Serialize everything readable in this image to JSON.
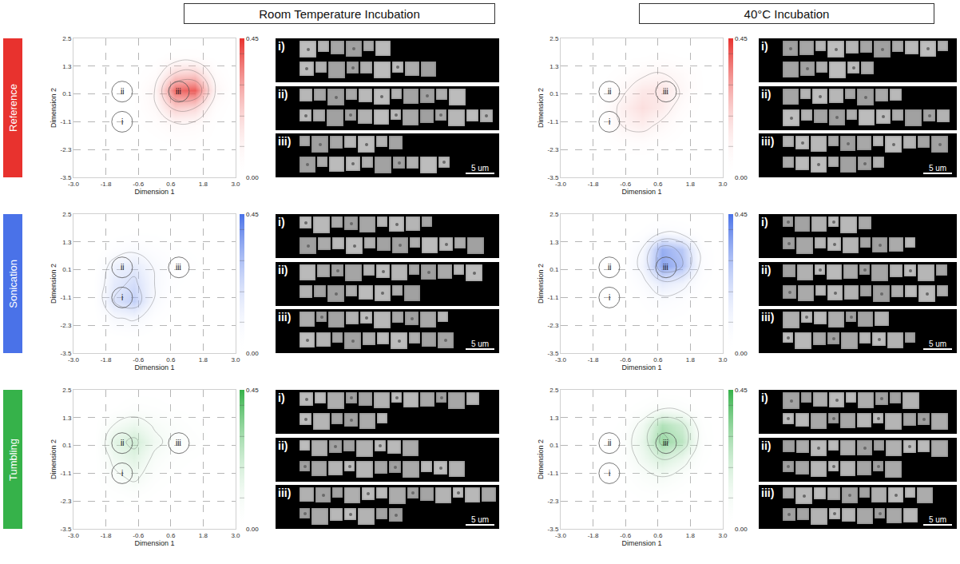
{
  "columns": [
    "Room Temperature Incubation",
    "40°C Incubation"
  ],
  "rows": [
    {
      "label": "Reference",
      "color": "#e8322e"
    },
    {
      "label": "Sonication",
      "color": "#4a72e8"
    },
    {
      "label": "Tumbling",
      "color": "#36b24a"
    }
  ],
  "chart_data": [
    {
      "type": "contour",
      "x_label": "Dimension 1",
      "y_label": "Dimension 2",
      "xlim": [
        -3,
        3
      ],
      "ylim": [
        -3.5,
        2.5
      ],
      "xticks": [
        {
          "value": -3,
          "label": "-3.0"
        },
        -1.8,
        -0.6,
        0.6,
        1.8,
        {
          "value": 3,
          "label": "3.0"
        }
      ],
      "yticks": [
        -3.5,
        -2.3,
        -1.1,
        0.1,
        1.3,
        2.5
      ],
      "grid": true,
      "color": "#e8322e",
      "x": [
        -3,
        -2.25,
        -1.5,
        -0.75,
        0,
        0.75,
        1.5,
        2.25,
        3
      ],
      "y": [
        -3.5,
        -2.75,
        -2,
        -1.25,
        -0.5,
        0.25,
        1,
        1.75,
        2.5
      ],
      "z": [
        [
          0,
          0,
          0,
          0,
          0,
          0,
          0,
          0,
          0
        ],
        [
          0,
          0,
          0,
          0,
          0,
          0.01,
          0.01,
          0,
          0
        ],
        [
          0,
          0,
          0,
          0,
          0.01,
          0.03,
          0.03,
          0.01,
          0
        ],
        [
          0,
          0,
          0,
          0.01,
          0.04,
          0.08,
          0.07,
          0.02,
          0
        ],
        [
          0,
          0,
          0,
          0.02,
          0.08,
          0.22,
          0.2,
          0.05,
          0
        ],
        [
          0,
          0,
          0,
          0.02,
          0.1,
          0.38,
          0.4,
          0.1,
          0.01
        ],
        [
          0,
          0,
          0,
          0.01,
          0.05,
          0.2,
          0.22,
          0.06,
          0
        ],
        [
          0,
          0,
          0,
          0,
          0.01,
          0.04,
          0.04,
          0.01,
          0
        ],
        [
          0,
          0,
          0,
          0,
          0,
          0,
          0,
          0,
          0
        ]
      ],
      "zlim": [
        0,
        0.45
      ],
      "zticks": [
        {
          "value": 0,
          "label": "0.00"
        },
        {
          "value": 0.45,
          "label": "0.45"
        }
      ],
      "regions": [
        {
          "label": "i",
          "x": -1.2,
          "y": -1.1
        },
        {
          "label": "ii",
          "x": -1.2,
          "y": 0.2
        },
        {
          "label": "iii",
          "x": 0.9,
          "y": 0.2
        }
      ],
      "strips": [
        "i)",
        "ii)",
        "iii)"
      ],
      "scale_bar": "5 um"
    },
    {
      "type": "contour",
      "x_label": "Dimension 1",
      "y_label": "Dimension 2",
      "xlim": [
        -3,
        3
      ],
      "ylim": [
        -3.5,
        2.5
      ],
      "xticks": [
        {
          "value": -3,
          "label": "-3.0"
        },
        -1.8,
        -0.6,
        0.6,
        1.8,
        {
          "value": 3,
          "label": "3.0"
        }
      ],
      "yticks": [
        -3.5,
        -2.3,
        -1.1,
        0.1,
        1.3,
        2.5
      ],
      "grid": true,
      "color": "#e8322e",
      "x": [
        -3,
        -2.25,
        -1.5,
        -0.75,
        0,
        0.75,
        1.5,
        2.25,
        3
      ],
      "y": [
        -3.5,
        -2.75,
        -2,
        -1.25,
        -0.5,
        0.25,
        1,
        1.75,
        2.5
      ],
      "z": [
        [
          0,
          0,
          0,
          0,
          0,
          0,
          0,
          0,
          0
        ],
        [
          0,
          0,
          0,
          0.01,
          0.01,
          0.01,
          0,
          0,
          0
        ],
        [
          0,
          0,
          0.01,
          0.04,
          0.05,
          0.03,
          0.01,
          0,
          0
        ],
        [
          0,
          0,
          0.02,
          0.1,
          0.13,
          0.08,
          0.03,
          0,
          0
        ],
        [
          0,
          0,
          0.03,
          0.12,
          0.18,
          0.14,
          0.06,
          0.01,
          0
        ],
        [
          0,
          0,
          0.02,
          0.08,
          0.15,
          0.16,
          0.09,
          0.02,
          0
        ],
        [
          0,
          0,
          0.01,
          0.04,
          0.08,
          0.1,
          0.07,
          0.02,
          0
        ],
        [
          0,
          0,
          0,
          0.01,
          0.02,
          0.03,
          0.02,
          0.01,
          0
        ],
        [
          0,
          0,
          0,
          0,
          0,
          0,
          0,
          0,
          0
        ]
      ],
      "zlim": [
        0,
        0.45
      ],
      "zticks": [
        {
          "value": 0,
          "label": "0.00"
        },
        {
          "value": 0.45,
          "label": "0.45"
        }
      ],
      "regions": [
        {
          "label": "i",
          "x": -1.2,
          "y": -1.1
        },
        {
          "label": "ii",
          "x": -1.2,
          "y": 0.2
        },
        {
          "label": "iii",
          "x": 0.9,
          "y": 0.2
        }
      ],
      "strips": [
        "i)",
        "ii)",
        "iii)"
      ],
      "scale_bar": "5 um"
    },
    {
      "type": "contour",
      "x_label": "Dimension 1",
      "y_label": "Dimension 2",
      "xlim": [
        -3,
        3
      ],
      "ylim": [
        -3.5,
        2.5
      ],
      "xticks": [
        {
          "value": -3,
          "label": "-3.0"
        },
        -1.8,
        -0.6,
        0.6,
        1.8,
        {
          "value": 3,
          "label": "3.0"
        }
      ],
      "yticks": [
        -3.5,
        -2.3,
        -1.1,
        0.1,
        1.3,
        2.5
      ],
      "grid": true,
      "color": "#4a72e8",
      "x": [
        -3,
        -2.25,
        -1.5,
        -0.75,
        0,
        0.75,
        1.5,
        2.25,
        3
      ],
      "y": [
        -3.5,
        -2.75,
        -2,
        -1.25,
        -0.5,
        0.25,
        1,
        1.75,
        2.5
      ],
      "z": [
        [
          0,
          0,
          0,
          0,
          0,
          0,
          0,
          0,
          0
        ],
        [
          0,
          0,
          0.02,
          0.03,
          0.01,
          0,
          0,
          0,
          0
        ],
        [
          0,
          0.01,
          0.09,
          0.11,
          0.04,
          0.01,
          0,
          0,
          0
        ],
        [
          0,
          0.02,
          0.2,
          0.26,
          0.09,
          0.02,
          0,
          0,
          0
        ],
        [
          0,
          0.02,
          0.17,
          0.22,
          0.1,
          0.03,
          0.01,
          0,
          0
        ],
        [
          0,
          0.01,
          0.14,
          0.17,
          0.09,
          0.04,
          0.03,
          0.01,
          0
        ],
        [
          0,
          0,
          0.05,
          0.08,
          0.05,
          0.03,
          0.02,
          0,
          0
        ],
        [
          0,
          0,
          0.01,
          0.02,
          0.02,
          0.01,
          0,
          0,
          0
        ],
        [
          0,
          0,
          0,
          0,
          0,
          0,
          0,
          0,
          0
        ]
      ],
      "zlim": [
        0,
        0.45
      ],
      "zticks": [
        {
          "value": 0,
          "label": "0.00"
        },
        {
          "value": 0.45,
          "label": "0.45"
        }
      ],
      "regions": [
        {
          "label": "i",
          "x": -1.2,
          "y": -1.1
        },
        {
          "label": "ii",
          "x": -1.2,
          "y": 0.2
        },
        {
          "label": "iii",
          "x": 0.9,
          "y": 0.2
        }
      ],
      "strips": [
        "i)",
        "ii)",
        "iii)"
      ],
      "scale_bar": "5 um"
    },
    {
      "type": "contour",
      "x_label": "Dimension 1",
      "y_label": "Dimension 2",
      "xlim": [
        -3,
        3
      ],
      "ylim": [
        -3.5,
        2.5
      ],
      "xticks": [
        {
          "value": -3,
          "label": "-3.0"
        },
        -1.8,
        -0.6,
        0.6,
        1.8,
        {
          "value": 3,
          "label": "3.0"
        }
      ],
      "yticks": [
        -3.5,
        -2.3,
        -1.1,
        0.1,
        1.3,
        2.5
      ],
      "grid": true,
      "color": "#4a72e8",
      "x": [
        -3,
        -2.25,
        -1.5,
        -0.75,
        0,
        0.75,
        1.5,
        2.25,
        3
      ],
      "y": [
        -3.5,
        -2.75,
        -2,
        -1.25,
        -0.5,
        0.25,
        1,
        1.75,
        2.5
      ],
      "z": [
        [
          0,
          0,
          0,
          0,
          0,
          0,
          0,
          0,
          0
        ],
        [
          0,
          0,
          0,
          0,
          0,
          0.01,
          0,
          0,
          0
        ],
        [
          0,
          0,
          0,
          0,
          0.01,
          0.03,
          0.02,
          0,
          0
        ],
        [
          0,
          0,
          0,
          0,
          0.03,
          0.07,
          0.05,
          0.01,
          0
        ],
        [
          0,
          0,
          0,
          0.01,
          0.07,
          0.17,
          0.13,
          0.03,
          0
        ],
        [
          0,
          0,
          0,
          0.02,
          0.12,
          0.36,
          0.3,
          0.06,
          0
        ],
        [
          0,
          0,
          0,
          0.01,
          0.1,
          0.34,
          0.28,
          0.05,
          0
        ],
        [
          0,
          0,
          0,
          0,
          0.03,
          0.08,
          0.06,
          0.01,
          0
        ],
        [
          0,
          0,
          0,
          0,
          0,
          0,
          0,
          0,
          0
        ]
      ],
      "zlim": [
        0,
        0.45
      ],
      "zticks": [
        {
          "value": 0,
          "label": "0.00"
        },
        {
          "value": 0.45,
          "label": "0.45"
        }
      ],
      "regions": [
        {
          "label": "i",
          "x": -1.2,
          "y": -1.1
        },
        {
          "label": "ii",
          "x": -1.2,
          "y": 0.2
        },
        {
          "label": "iii",
          "x": 0.9,
          "y": 0.2
        }
      ],
      "strips": [
        "i)",
        "ii)",
        "iii)"
      ],
      "scale_bar": "5 um"
    },
    {
      "type": "contour",
      "x_label": "Dimension 1",
      "y_label": "Dimension 2",
      "xlim": [
        -3,
        3
      ],
      "ylim": [
        -3.5,
        2.5
      ],
      "xticks": [
        {
          "value": -3,
          "label": "-3.0"
        },
        -1.8,
        -0.6,
        0.6,
        1.8,
        {
          "value": 3,
          "label": "3.0"
        }
      ],
      "yticks": [
        -3.5,
        -2.3,
        -1.1,
        0.1,
        1.3,
        2.5
      ],
      "grid": true,
      "color": "#36b24a",
      "x": [
        -3,
        -2.25,
        -1.5,
        -0.75,
        0,
        0.75,
        1.5,
        2.25,
        3
      ],
      "y": [
        -3.5,
        -2.75,
        -2,
        -1.25,
        -0.5,
        0.25,
        1,
        1.75,
        2.5
      ],
      "z": [
        [
          0,
          0,
          0,
          0,
          0,
          0,
          0,
          0,
          0
        ],
        [
          0,
          0,
          0.01,
          0.01,
          0,
          0,
          0,
          0,
          0
        ],
        [
          0,
          0,
          0.03,
          0.05,
          0.02,
          0,
          0,
          0,
          0
        ],
        [
          0,
          0.01,
          0.08,
          0.12,
          0.05,
          0.02,
          0,
          0,
          0
        ],
        [
          0,
          0.01,
          0.12,
          0.17,
          0.08,
          0.04,
          0.02,
          0,
          0
        ],
        [
          0,
          0.01,
          0.17,
          0.22,
          0.12,
          0.07,
          0.05,
          0.01,
          0
        ],
        [
          0,
          0.01,
          0.1,
          0.14,
          0.09,
          0.06,
          0.03,
          0.01,
          0
        ],
        [
          0,
          0,
          0.02,
          0.05,
          0.04,
          0.02,
          0.01,
          0,
          0
        ],
        [
          0,
          0,
          0,
          0.01,
          0.01,
          0,
          0,
          0,
          0
        ]
      ],
      "zlim": [
        0,
        0.45
      ],
      "zticks": [
        {
          "value": 0,
          "label": "0.00"
        },
        {
          "value": 0.45,
          "label": "0.45"
        }
      ],
      "regions": [
        {
          "label": "i",
          "x": -1.2,
          "y": -1.1
        },
        {
          "label": "ii",
          "x": -1.2,
          "y": 0.2
        },
        {
          "label": "iii",
          "x": 0.9,
          "y": 0.2
        }
      ],
      "strips": [
        "i)",
        "ii)",
        "iii)"
      ],
      "scale_bar": "5 um"
    },
    {
      "type": "contour",
      "x_label": "Dimension 1",
      "y_label": "Dimension 2",
      "xlim": [
        -3,
        3
      ],
      "ylim": [
        -3.5,
        2.5
      ],
      "xticks": [
        {
          "value": -3,
          "label": "-3.0"
        },
        -1.8,
        -0.6,
        0.6,
        1.8,
        {
          "value": 3,
          "label": "3.0"
        }
      ],
      "yticks": [
        -3.5,
        -2.3,
        -1.1,
        0.1,
        1.3,
        2.5
      ],
      "grid": true,
      "color": "#36b24a",
      "x": [
        -3,
        -2.25,
        -1.5,
        -0.75,
        0,
        0.75,
        1.5,
        2.25,
        3
      ],
      "y": [
        -3.5,
        -2.75,
        -2,
        -1.25,
        -0.5,
        0.25,
        1,
        1.75,
        2.5
      ],
      "z": [
        [
          0,
          0,
          0,
          0,
          0,
          0,
          0,
          0,
          0
        ],
        [
          0,
          0,
          0,
          0,
          0.01,
          0.01,
          0,
          0,
          0
        ],
        [
          0,
          0,
          0,
          0.01,
          0.03,
          0.04,
          0.02,
          0,
          0
        ],
        [
          0,
          0,
          0,
          0.02,
          0.07,
          0.1,
          0.06,
          0.01,
          0
        ],
        [
          0,
          0,
          0.01,
          0.04,
          0.12,
          0.2,
          0.14,
          0.03,
          0
        ],
        [
          0,
          0,
          0.01,
          0.05,
          0.15,
          0.32,
          0.26,
          0.05,
          0
        ],
        [
          0,
          0,
          0,
          0.03,
          0.12,
          0.28,
          0.22,
          0.04,
          0
        ],
        [
          0,
          0,
          0,
          0.01,
          0.04,
          0.08,
          0.06,
          0.01,
          0
        ],
        [
          0,
          0,
          0,
          0,
          0,
          0.01,
          0,
          0,
          0
        ]
      ],
      "zlim": [
        0,
        0.45
      ],
      "zticks": [
        {
          "value": 0,
          "label": "0.00"
        },
        {
          "value": 0.45,
          "label": "0.45"
        }
      ],
      "regions": [
        {
          "label": "i",
          "x": -1.2,
          "y": -1.1
        },
        {
          "label": "ii",
          "x": -1.2,
          "y": 0.2
        },
        {
          "label": "iii",
          "x": 0.9,
          "y": 0.2
        }
      ],
      "strips": [
        "i)",
        "ii)",
        "iii)"
      ],
      "scale_bar": "5 um"
    }
  ]
}
